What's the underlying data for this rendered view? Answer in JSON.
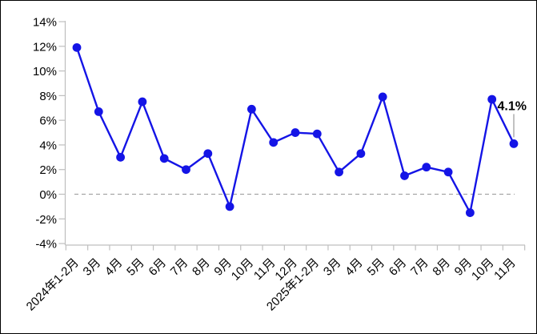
{
  "window": {
    "background": "#ffffff",
    "border_color": "#000000"
  },
  "chart_data": {
    "type": "line",
    "title": "",
    "xlabel": "",
    "ylabel": "",
    "grid": "off",
    "legend": "none",
    "categories": [
      "2024年1-2月",
      "3月",
      "4月",
      "5月",
      "6月",
      "7月",
      "8月",
      "9月",
      "10月",
      "11月",
      "12月",
      "2025年1-2月",
      "3月",
      "4月",
      "5月",
      "6月",
      "7月",
      "8月",
      "9月",
      "10月",
      "11月"
    ],
    "series": [
      {
        "name": "monthly-yoy-growth-percent",
        "color": "#1414E6",
        "marker": "circle",
        "values": [
          11.9,
          6.7,
          3.0,
          7.5,
          2.9,
          2.0,
          3.3,
          -1.0,
          6.9,
          4.2,
          5.0,
          4.9,
          1.8,
          3.3,
          7.9,
          1.5,
          2.2,
          1.8,
          -1.5,
          7.7,
          4.1
        ]
      }
    ],
    "ylim": [
      -4,
      14
    ],
    "ytick_step": 2,
    "ytick_values": [
      14,
      12,
      10,
      8,
      6,
      4,
      2,
      0,
      -2,
      -4
    ],
    "ytick_labels": [
      "14%",
      "12%",
      "10%",
      "8%",
      "6%",
      "4%",
      "2%",
      "0%",
      "-2%",
      "-4%"
    ],
    "zero_line": {
      "value": 0,
      "style": "dashed",
      "color": "#A6A6A6"
    },
    "axis_color": "#BFBFBF",
    "text_color": "#000000",
    "annotation": {
      "text": "4.1%",
      "index": 20,
      "leader_color": "#B3B3B3"
    }
  }
}
